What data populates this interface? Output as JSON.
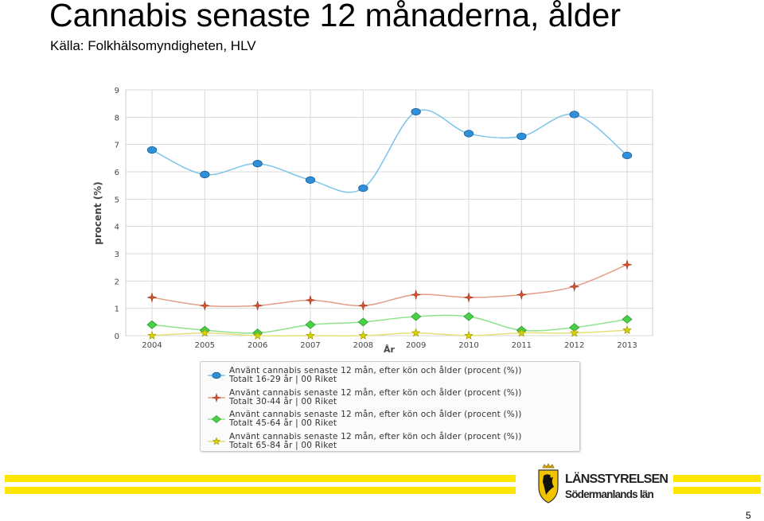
{
  "slide": {
    "title": "Cannabis senaste 12 månaderna, ålder",
    "subtitle": "Källa: Folkhälsomyndigheten, HLV",
    "page_number": "5"
  },
  "logo": {
    "line1": "LÄNSSTYRELSEN",
    "line2": "Södermanlands län"
  },
  "colors": {
    "footer_bar": "#ffe600",
    "grid": "#d9d9d9",
    "plot_bg": "#ffffff"
  },
  "chart_data": {
    "type": "line",
    "x": [
      "2004",
      "2005",
      "2006",
      "2007",
      "2008",
      "2009",
      "2010",
      "2011",
      "2012",
      "2013"
    ],
    "xlabel": "År",
    "ylabel": "procent (%)",
    "ylim": [
      0,
      9
    ],
    "yticks": [
      "0",
      "1",
      "2",
      "3",
      "4",
      "5",
      "6",
      "7",
      "8",
      "9"
    ],
    "grid": true,
    "legend_position": "bottom",
    "series": [
      {
        "line1": "Använt cannabis senaste 12 mån, efter kön och ålder (procent (%))",
        "line2": "Totalt 16-29 år  |  00 Riket",
        "marker": "circle",
        "line_color": "#7cc4ea",
        "marker_color": "#2f8fd8",
        "values": [
          6.8,
          5.9,
          6.3,
          5.7,
          5.4,
          8.2,
          7.4,
          7.3,
          8.1,
          6.6
        ]
      },
      {
        "line1": "Använt cannabis senaste 12 mån, efter kön och ålder (procent (%))",
        "line2": "Totalt 30-44 år  |  00 Riket",
        "marker": "star4",
        "line_color": "#e39c88",
        "marker_color": "#d9512e",
        "values": [
          1.4,
          1.1,
          1.1,
          1.3,
          1.1,
          1.5,
          1.4,
          1.5,
          1.8,
          2.6
        ]
      },
      {
        "line1": "Använt cannabis senaste 12 mån, efter kön och ålder (procent (%))",
        "line2": "Totalt 45-64 år  |  00 Riket",
        "marker": "diamond",
        "line_color": "#8fe38f",
        "marker_color": "#48d048",
        "values": [
          0.4,
          0.2,
          0.1,
          0.4,
          0.5,
          0.7,
          0.7,
          0.2,
          0.3,
          0.6
        ]
      },
      {
        "line1": "Använt cannabis senaste 12 mån, efter kön och ålder (procent (%))",
        "line2": "Totalt 65-84 år  |  00 Riket",
        "marker": "star5",
        "line_color": "#e6e07a",
        "marker_color": "#d8d200",
        "values": [
          0.0,
          0.1,
          0.0,
          0.0,
          0.0,
          0.1,
          0.0,
          0.1,
          0.1,
          0.2
        ]
      }
    ]
  }
}
